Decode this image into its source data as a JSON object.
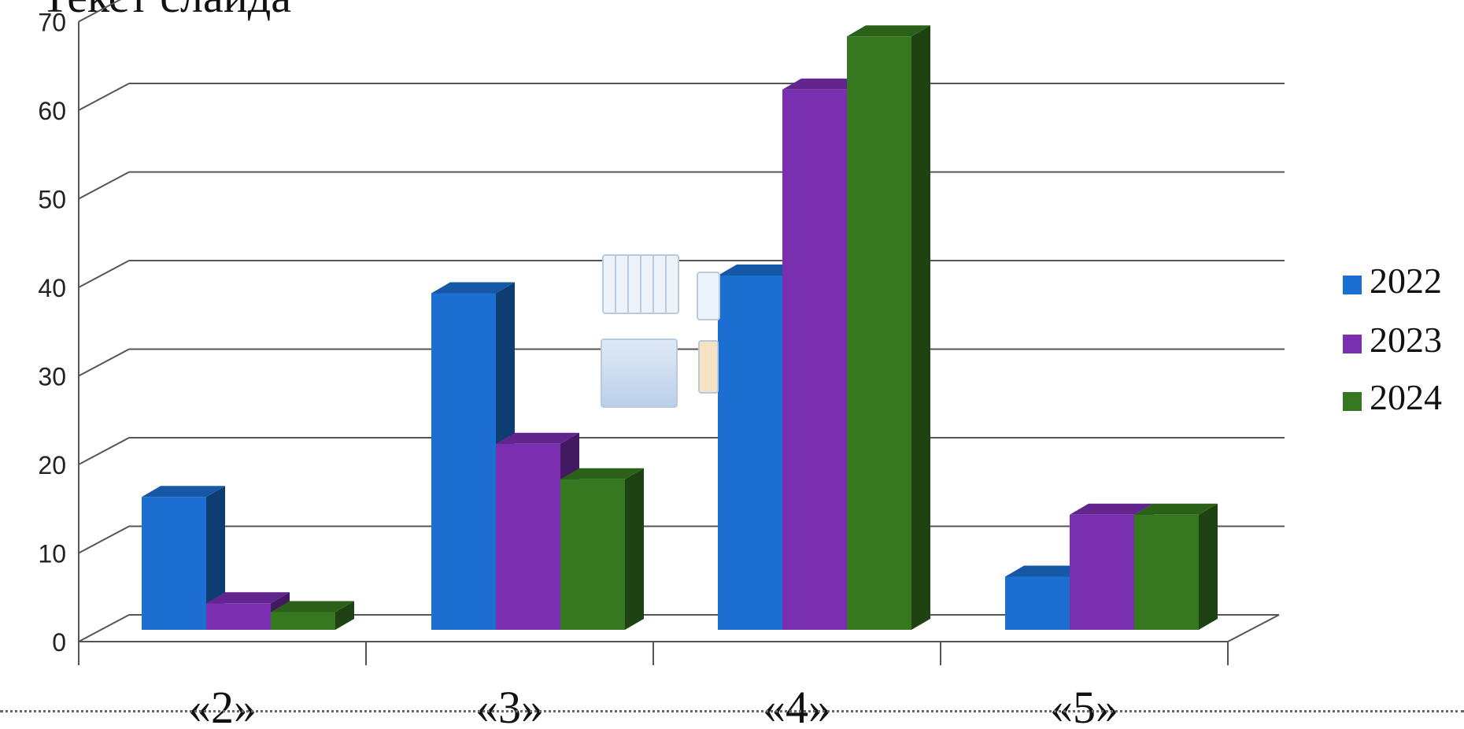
{
  "slide": {
    "title": "Текст слайда"
  },
  "colors": {
    "2022": "#1a6fd0",
    "2023": "#7a2eb0",
    "2024": "#36781f"
  },
  "chart_data": {
    "type": "bar",
    "style": "3d-clustered-column",
    "categories": [
      "«2»",
      "«3»",
      "«4»",
      "«5»"
    ],
    "series": [
      {
        "name": "2022",
        "values": [
          15,
          38,
          40,
          6
        ]
      },
      {
        "name": "2023",
        "values": [
          3,
          21,
          61,
          13
        ]
      },
      {
        "name": "2024",
        "values": [
          2,
          17,
          67,
          13
        ]
      }
    ],
    "ylim": [
      0,
      70
    ],
    "yticks": [
      0,
      10,
      20,
      30,
      40,
      50,
      60,
      70
    ],
    "grid": true,
    "legend": "right"
  }
}
